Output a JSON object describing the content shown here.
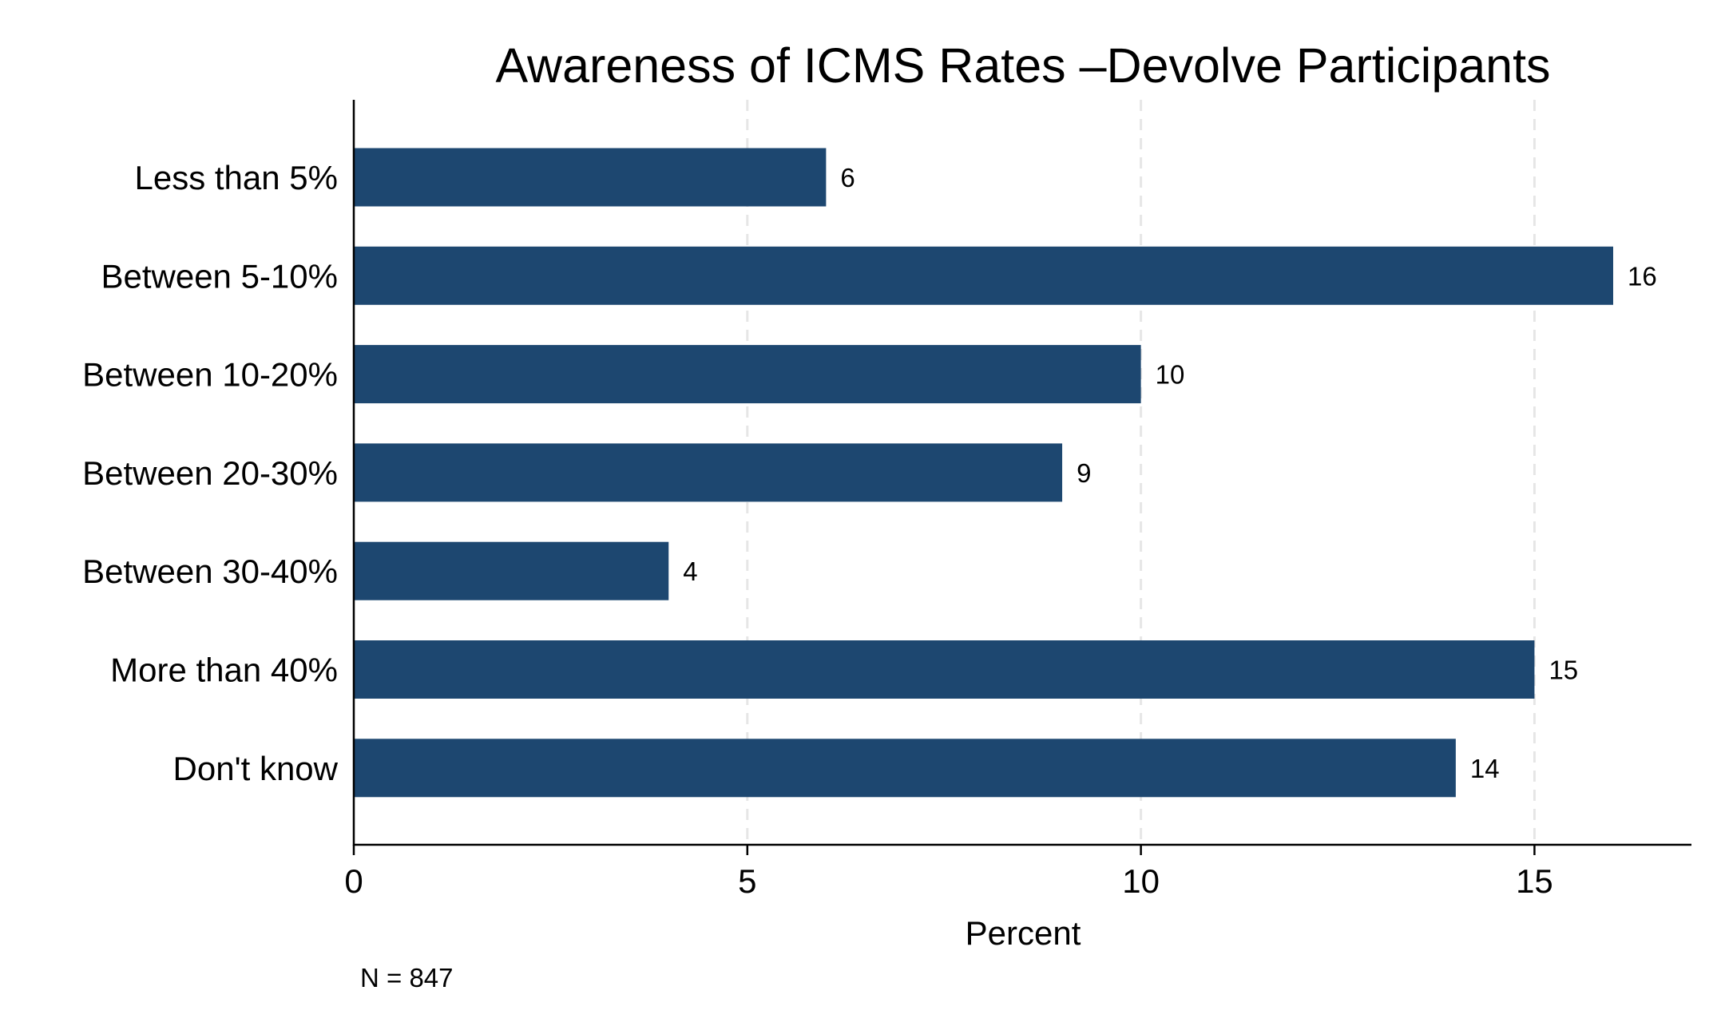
{
  "chart_data": {
    "type": "bar",
    "orientation": "horizontal",
    "title": "Awareness of ICMS Rates –Devolve Participants",
    "xlabel": "Percent",
    "ylabel": "",
    "categories": [
      "Less than 5%",
      "Between 5-10%",
      "Between 10-20%",
      "Between 20-30%",
      "Between 30-40%",
      "More than 40%",
      "Don't know"
    ],
    "values": [
      6,
      16,
      10,
      9,
      4,
      15,
      14
    ],
    "value_labels": [
      "6",
      "16",
      "10",
      "9",
      "4",
      "15",
      "14"
    ],
    "xlim": [
      0,
      16.5
    ],
    "x_ticks": [
      0,
      5,
      10,
      15
    ],
    "x_tick_labels": [
      "0",
      "5",
      "10",
      "15"
    ],
    "grid": "vertical dashed at major ticks",
    "legend": "none",
    "bar_color": "#1d4770",
    "grid_color": "#e6e6e6",
    "note": "N = 847"
  }
}
